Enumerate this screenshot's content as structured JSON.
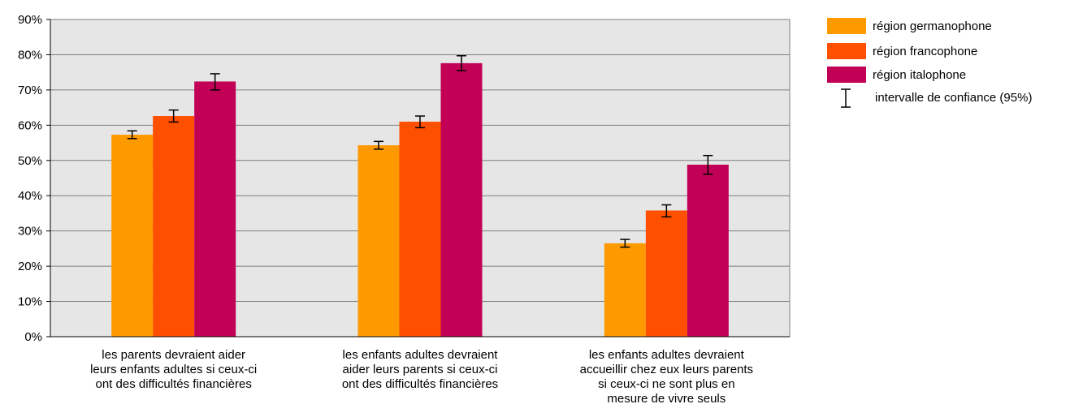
{
  "chart_data": {
    "type": "bar",
    "categories": [
      "les parents devraient aider\nleurs enfants adultes si ceux-ci\nont des difficultés financières",
      "les enfants adultes devraient\naider leurs parents si ceux-ci\nont des difficultés financières",
      "les enfants adultes devraient\naccueillir chez eux leurs parents\nsi ceux-ci ne sont plus en\nmesure de vivre seuls"
    ],
    "series": [
      {
        "name": "région germanophone",
        "color": "#FF9900",
        "values": [
          57.3,
          54.3,
          26.5
        ],
        "ci_low": [
          56.2,
          53.2,
          25.4
        ],
        "ci_high": [
          58.4,
          55.4,
          27.6
        ]
      },
      {
        "name": "région francophone",
        "color": "#FF4F00",
        "values": [
          62.6,
          61.0,
          35.8
        ],
        "ci_low": [
          60.9,
          59.3,
          34.0
        ],
        "ci_high": [
          64.3,
          62.6,
          37.4
        ]
      },
      {
        "name": "région italophone",
        "color": "#C20056",
        "values": [
          72.4,
          77.6,
          48.8
        ],
        "ci_low": [
          70.0,
          75.5,
          46.1
        ],
        "ci_high": [
          74.6,
          79.7,
          51.4
        ]
      }
    ],
    "ci_legend": "intervalle de confiance (95%)",
    "ylim": [
      0,
      90
    ],
    "y_ticks": [
      "0%",
      "10%",
      "20%",
      "30%",
      "40%",
      "50%",
      "60%",
      "70%",
      "80%",
      "90%"
    ],
    "grid": true,
    "legend_position": "right",
    "plot_background": "#E6E6E6",
    "gridline_color": "#7F7F7F"
  }
}
